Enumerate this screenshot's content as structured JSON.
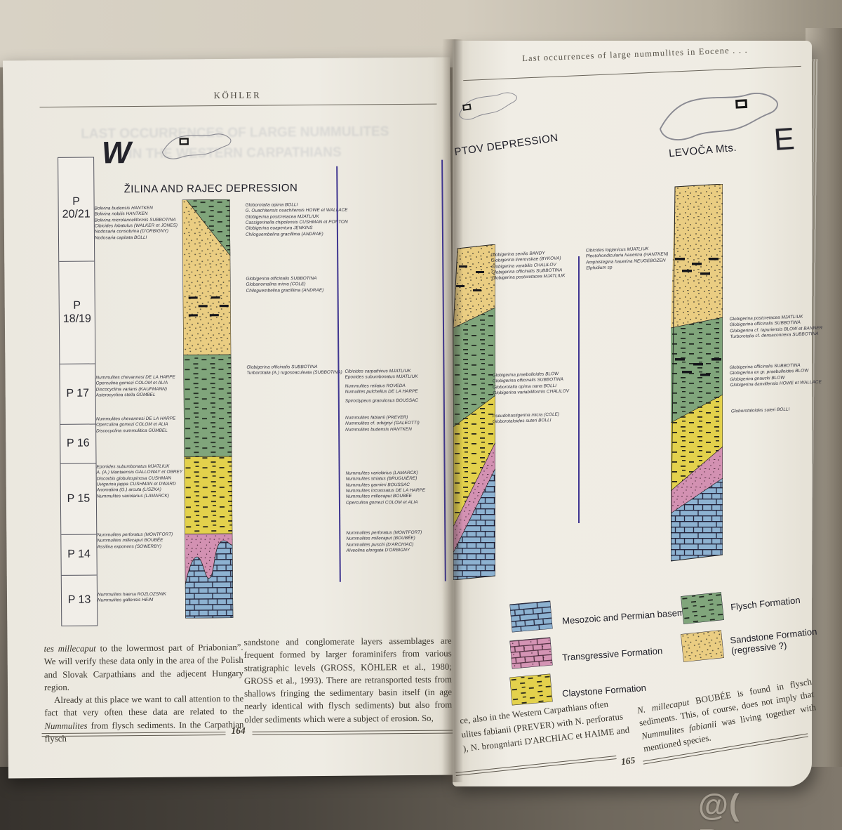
{
  "watermark": "@( Bazos.cz",
  "colors": {
    "basement": "#8db2d1",
    "transgressive": "#d494b4",
    "claystone": "#e3d14c",
    "flysch": "#80a57b",
    "sandstone": "#eacd82",
    "separator_line": "#3f3590"
  },
  "left": {
    "head": "KÖHLER",
    "bleed1": "LAST OCCURRENCES OF LARGE NUMMULITES",
    "bleed2": "IN THE WESTERN CARPATHIANS",
    "dir": "W",
    "title": "ŽILINA AND RAJEC DEPRESSION",
    "zones": [
      [
        "P",
        "20/21"
      ],
      [
        "P",
        "18/19"
      ],
      [
        "P 17",
        ""
      ],
      [
        "P 16",
        ""
      ],
      [
        "P 15",
        ""
      ],
      [
        "P 14",
        ""
      ],
      [
        "P 13",
        ""
      ]
    ],
    "z2021": [
      "Bolivina budensis  HANTKEN",
      "Bolivina nobilis  HANTKEN",
      "Bolivina microlanceliformis  SUBBOTINA",
      "Cibicides lobatulus  (WALKER et JONES)",
      "Nodosaria consobrina  (D'ORBIGNY)",
      "Nodosaria capitata  BOLLI"
    ],
    "z17": [
      "Nummulites chevannesi DE LA HARPE",
      "Operculina gomezi COLOM et ALIA",
      "Discocyclina varians (KAUFMANN)",
      "Asterocyclina stella GÜMBEL"
    ],
    "z16": [
      "Nummulites chevannesi DE LA HARPE",
      "Operculina gomezi COLOM et ALIA",
      "Discocyclina nummulitica GÜMBEL"
    ],
    "z15": [
      "Eponides subumbonatus MJATLIUK",
      "A. (A.) Mantaensis GALLOWAY et OBREY",
      "Discorbis globulospinosa CUSHMAN",
      "Uvigerina jappa CUSHMAN et DWARD",
      "Anomalina (G.) arcuta (LISZKA)",
      "Nummulites variolarius (LAMARCK)"
    ],
    "z14": [
      "Nummulites perforatus (MONTFORT)",
      "Nummulites millecaput BOUBÉE",
      "Assilina exponens (SOWERBY)"
    ],
    "z13": [
      "Nummulites haerra ROZLOZSNIK",
      "Nummulites gallensis HEIM"
    ],
    "c1g1": [
      "Globorotalia opima BOLLI",
      "G. Ouachitensis ouachitensis HOWE et WALLACE",
      "Globigerina postcretacea MJATLIUK",
      "Cassigerinella chipolensis CUSHMAN et PONTON",
      "Globigerina euapertura JENKINS",
      "Chiloguembelina gracillima (ANDRAE)"
    ],
    "c1g2": [
      "Globigerina officinalis SUBBOTINA",
      "Globanomalina micra (COLE)",
      "Chiloguembelina gracillima (ANDRAE)"
    ],
    "c1g3": [
      "Globigerina officinalis SUBBOTINA",
      "Turborotalia (A.)  rugosoaculeata (SUBBOTINA)"
    ],
    "c2g1": [
      "Cibicides carpathicus MJATLIUK",
      "Eponides subumbonatus MJATLIUK",
      "Nummulites reliatus ROVEDA",
      "Numulites pulchellus DE LA HARPE",
      "Spiroclypeus granulosus BOUSSAC"
    ],
    "c2g2": [
      "Nummulites fabianii (PREVER)",
      "Nummulites cf. orbignyi (GALEOTTI)",
      "Nummulites budensis HANTKEN"
    ],
    "c2g3": [
      "Nummulites variolarius (LAMARCK)",
      "Nummulites striatus (BRUGUIÈRE)",
      "Nummulites garnieri BOUSSAC",
      "Nummulites incrassatus DE LA HARPE",
      "Nummulites millecaput BOUBÉE",
      "Operculina gomezi COLOM et ALIA"
    ],
    "c2g4": [
      "Nummulites perforatus (MONTFORT)",
      "Nummulites millecaput (BOUBÉE)",
      "Nummulites puschi (D'ARCHIAC)",
      "Alveolina elongata D'ORBIGNY"
    ],
    "body1_i": "tes millecaput",
    "body1_t": " to the lowermost part of Priabonian”. We will verify these data only in the area of the Polish and Slovak Carpathians and the adjecent Hungary region.",
    "body2_a": "Already at this place we want to call attention to the fact that very often these data are related to the ",
    "body2_i": "Nummulites",
    "body2_b": " from flysch sediments. In the Carpathian flysch",
    "body_r": "sandstone and conglomerate layers assemblages are frequent formed by larger foraminifers from various stratigraphic levels (GROSS, KÖHLER et al., 1980; GROSS et al., 1993). There are retransported tests from shallows fringing the sedimentary basin itself (in age nearly identical with flysch sediments) but also from older sediments which were a subject of erosion. So,",
    "pageno": "164"
  },
  "right": {
    "head": "Last occurrences of large nummulites in Eocene . . .",
    "title_l": "PTOV DEPRESSION",
    "title_r": "LEVOČA Mts.",
    "dir": "E",
    "lg1": [
      "Globigerina senilis BANDY",
      "Globigerina liverovskae (BYKOVA)",
      "Globigerina varabilis CHALILOV",
      "Globigerina officinalis SUBBOTINA",
      "Globigerina postcretacea MJATLIUK"
    ],
    "lg2": [
      "Globigerina praebolloides BLOW",
      "Globigerina officinalis SUBBOTINA",
      "Globorotalia opima nana BOLLI",
      "Globigerina variabiliformis CHALILOV"
    ],
    "lg3": [
      "Pseudohastigerina micra (COLE)",
      "Globorotaloides suteri BOLLI"
    ],
    "mg1": [
      "Cibicides lopjanicus MJATLIUK",
      "Plectofrondicularia hauerina (HANTKEN)",
      "Amphistegina hauerina NEUGEBOZEN",
      "Elphidium sp"
    ],
    "vg1": [
      "Globigerina postcretacea MJATLIUK",
      "Globigerina officinalis SUBBOTINA",
      "Globigerina cf. tapuriensis BLOW et BANNER",
      "Turborotalia cf. densaconnexa SUBBOTINA"
    ],
    "vg2": [
      "Globigerina officinalis SUBBOTINA",
      "Globigerina ex gr. praebulloides BLOW",
      "Globigerina gnaucki BLOW",
      "Globigerina danvillensis HOWE et WALLACE"
    ],
    "vg3": [
      "Globorotaloides suteri BOLLI"
    ],
    "legend": [
      "Mesozoic and Permian basement",
      "Transgressive Formation",
      "Claystone Formation",
      "Flysch Formation",
      "Sandstone Formation",
      "(regressive ?)"
    ],
    "b1": [
      "ce, also in the Western Carpathians often",
      "ulites fabianii (PREVER) with N. perforatus",
      "), N. brongniarti D'ARCHIAC et HAIME and"
    ],
    "b2_i1": "N. millecaput",
    "b2_t1": " BOUBÉE is found in flysch sediments. This, of course, does not imply that ",
    "b2_i2": "Nummulites fabianii",
    "b2_t2": " was living together with mentioned species.",
    "pageno": "165"
  }
}
